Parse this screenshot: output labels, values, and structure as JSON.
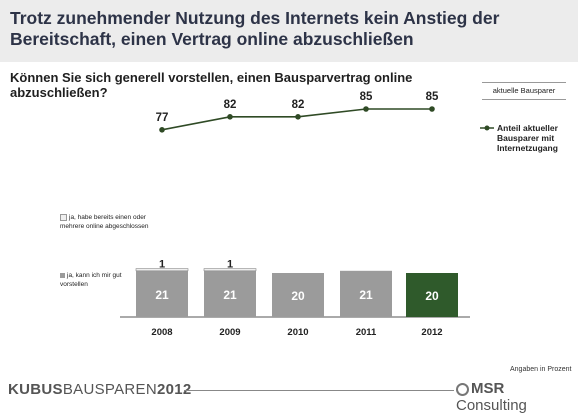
{
  "title": "Trotz zunehmender Nutzung des Internets kein Anstieg der Bereitschaft, einen Vertrag online abzuschließen",
  "question": "Können Sie sich generell vorstellen, einen Bausparvertrag online abzuschließen?",
  "legend_box": "aktuelle Bausparer",
  "line_legend": "Anteil aktueller Bausparer mit Internetzugang",
  "label_already": "ja, habe bereits einen oder mehrere online abgeschlossen",
  "label_could": "ja, kann ich mir gut vorstellen",
  "footer_note": "Angaben in Prozent",
  "brand": {
    "bold1": "KUBUS",
    "normal": "BAUSPAREN",
    "bold2": "2012"
  },
  "company": {
    "bold": "MSR",
    "normal": " Consulting"
  },
  "colors": {
    "bar": "#9b9b9b",
    "bar_highlight": "#2f5a2b",
    "line": "#2f4a25",
    "top_segment": "#efefef"
  },
  "chart_data": [
    {
      "type": "line",
      "x": [
        "2008",
        "2009",
        "2010",
        "2011",
        "2012"
      ],
      "series": [
        {
          "name": "Anteil aktueller Bausparer mit Internetzugang",
          "values": [
            77,
            82,
            82,
            85,
            85
          ]
        }
      ]
    },
    {
      "type": "bar",
      "categories": [
        "2008",
        "2009",
        "2010",
        "2011",
        "2012"
      ],
      "series": [
        {
          "name": "ja, kann ich mir gut vorstellen",
          "values": [
            21,
            21,
            20,
            21,
            20
          ]
        },
        {
          "name": "ja, habe bereits einen oder mehrere online abgeschlossen",
          "values": [
            1,
            1,
            null,
            null,
            null
          ]
        }
      ]
    }
  ]
}
